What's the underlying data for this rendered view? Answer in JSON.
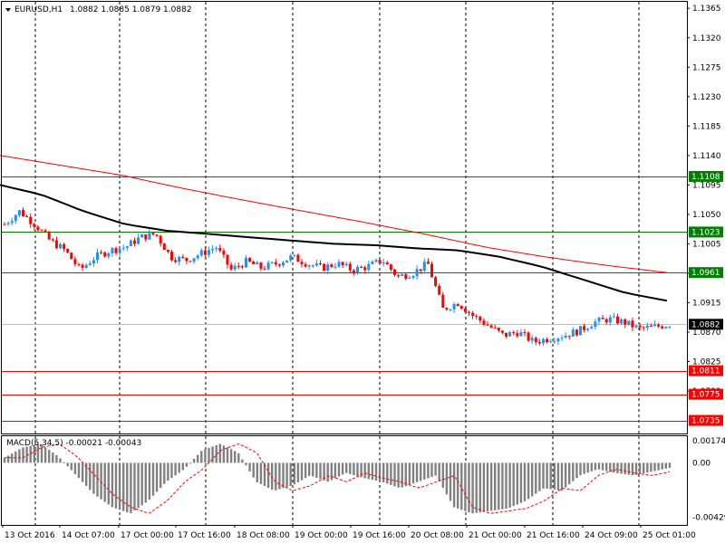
{
  "header": {
    "symbol": "EURUSD,H1",
    "ohlc": "1.0882 1.0885 1.0879 1.0882"
  },
  "colors": {
    "background": "#ffffff",
    "frame": "#000000",
    "grid": "#000000",
    "bull": "#1e90ff",
    "bear": "#ff0000",
    "sma_fast": "#000000",
    "sma_slow": "#ff0000",
    "support": "#ff0000",
    "resistance": "#008000",
    "bid": "#c0c0c0",
    "macd_hist": "#808080",
    "macd_signal": "#ff0000",
    "label_green": "#008000",
    "label_red": "#ff0000",
    "label_bid": "#000000"
  },
  "chart_data": {
    "type": "candlestick",
    "price_axis": {
      "min": 1.0715,
      "max": 1.1375,
      "ticks": [
        "1.1365",
        "1.1320",
        "1.1275",
        "1.1230",
        "1.1185",
        "1.1140",
        "1.1095",
        "1.1050",
        "1.1005",
        "1.0960",
        "1.0915",
        "1.0870",
        "1.0825",
        "1.0780"
      ]
    },
    "time_axis": [
      "13 Oct 2016",
      "14 Oct 07:00",
      "17 Oct 00:00",
      "17 Oct 16:00",
      "18 Oct 08:00",
      "19 Oct 00:00",
      "19 Oct 16:00",
      "20 Oct 08:00",
      "21 Oct 00:00",
      "21 Oct 16:00",
      "24 Oct 09:00",
      "25 Oct 01:00"
    ],
    "bars": 180,
    "close_anchors": [
      1.1035,
      1.1055,
      1.1035,
      1.101,
      1.0995,
      1.0965,
      1.0985,
      1.0995,
      1.1,
      1.1015,
      1.102,
      1.0985,
      1.098,
      1.099,
      1.1,
      1.0965,
      1.0978,
      1.0968,
      1.0975,
      1.0985,
      1.0975,
      1.0968,
      1.0975,
      1.0965,
      1.097,
      1.098,
      1.0955,
      1.096,
      1.0975,
      1.0905,
      1.0915,
      1.0895,
      1.088,
      1.0865,
      1.087,
      1.0855,
      1.086,
      1.0865,
      1.0872,
      1.0885,
      1.089,
      1.0885,
      1.0875,
      1.0878,
      1.0882
    ],
    "sma_fast_anchors": [
      1.1095,
      1.108,
      1.1055,
      1.1035,
      1.1025,
      1.102,
      1.1015,
      1.101,
      1.1005,
      1.1003,
      1.0998,
      1.0995,
      1.0985,
      1.097,
      1.095,
      1.093,
      1.0918
    ],
    "sma_slow_anchors": [
      1.114,
      1.1125,
      1.111,
      1.109,
      1.1072,
      1.1055,
      1.1038,
      1.102,
      1.1,
      1.0985,
      1.0972,
      1.0961
    ],
    "hlines": [
      {
        "value": 1.1108,
        "label": "1.1108",
        "color": "green"
      },
      {
        "value": 1.1023,
        "label": "1.1023",
        "color": "green"
      },
      {
        "value": 1.0961,
        "label": "1.0961",
        "color": "green"
      },
      {
        "value": 1.0811,
        "label": "1.0811",
        "color": "red"
      },
      {
        "value": 1.0775,
        "label": "1.0775",
        "color": "red"
      },
      {
        "value": 1.0735,
        "label": "1.0735",
        "color": "red"
      }
    ],
    "bid": {
      "value": 1.0882,
      "label": "1.0882"
    },
    "macd": {
      "label": "MACD(5,34,5) -0.00021 -0.00043",
      "min": -0.0049,
      "max": 0.0021,
      "ticks": [
        "0.00174",
        "0.00",
        "-0.00429"
      ],
      "anchors": [
        0.0004,
        0.0012,
        0.0015,
        0.0005,
        -0.001,
        -0.0025,
        -0.0035,
        -0.004,
        -0.003,
        -0.0015,
        -0.0005,
        0.001,
        0.0015,
        0.0008,
        -0.0015,
        -0.0022,
        -0.0018,
        -0.001,
        -0.0015,
        -0.0008,
        -0.0012,
        -0.0015,
        -0.002,
        -0.0015,
        -0.001,
        -0.0035,
        -0.004,
        -0.0038,
        -0.0036,
        -0.003,
        -0.002,
        -0.0022,
        -0.001,
        -0.0005,
        -0.0008,
        -0.001,
        -0.0007,
        -0.0004
      ]
    }
  }
}
